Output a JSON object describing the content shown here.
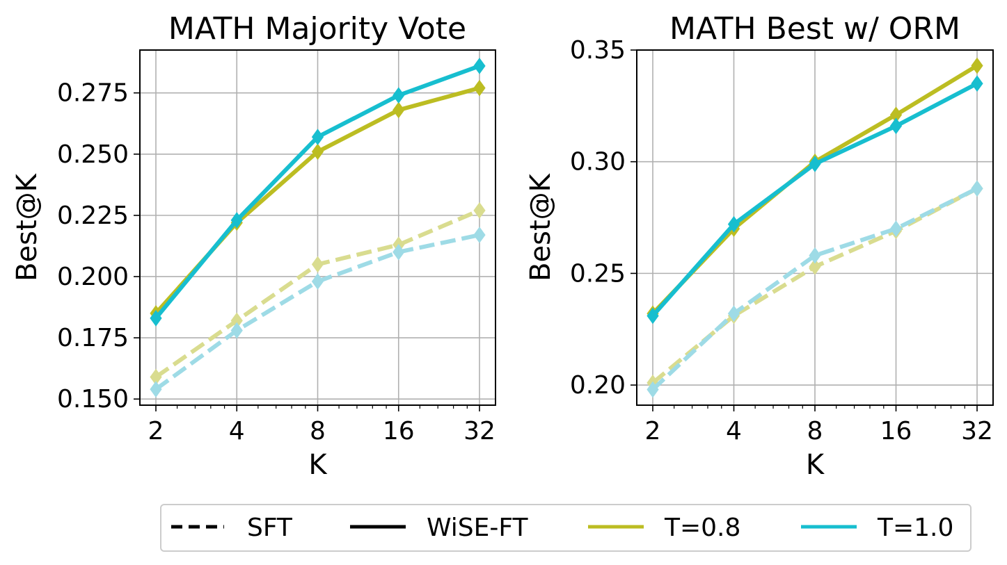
{
  "chart_data": [
    {
      "type": "line",
      "title": "MATH Majority Vote",
      "xlabel": "K",
      "ylabel": "Best@K",
      "x_scale": "log2",
      "x": [
        2,
        4,
        8,
        16,
        32
      ],
      "x_tick_labels": [
        "2",
        "4",
        "8",
        "16",
        "32"
      ],
      "ylim": [
        0.1475,
        0.2925
      ],
      "y_ticks": [
        0.15,
        0.175,
        0.2,
        0.225,
        0.25,
        0.275
      ],
      "y_tick_labels": [
        "0.150",
        "0.175",
        "0.200",
        "0.225",
        "0.250",
        "0.275"
      ],
      "grid": true,
      "series": [
        {
          "name": "SFT T=0.8",
          "method": "SFT",
          "temperature": "T=0.8",
          "style": "dashed",
          "color": "#d9dc8f",
          "values": [
            0.159,
            0.182,
            0.205,
            0.213,
            0.227
          ]
        },
        {
          "name": "SFT T=1.0",
          "method": "SFT",
          "temperature": "T=1.0",
          "style": "dashed",
          "color": "#9edbe6",
          "values": [
            0.154,
            0.178,
            0.198,
            0.21,
            0.217
          ]
        },
        {
          "name": "WiSE-FT T=0.8",
          "method": "WiSE-FT",
          "temperature": "T=0.8",
          "style": "solid",
          "color": "#bcbd22",
          "values": [
            0.185,
            0.222,
            0.251,
            0.268,
            0.277
          ]
        },
        {
          "name": "WiSE-FT T=1.0",
          "method": "WiSE-FT",
          "temperature": "T=1.0",
          "style": "solid",
          "color": "#17becf",
          "values": [
            0.183,
            0.223,
            0.257,
            0.274,
            0.286
          ]
        }
      ]
    },
    {
      "type": "line",
      "title": "MATH Best w/ ORM",
      "xlabel": "K",
      "ylabel": "Best@K",
      "x_scale": "log2",
      "x": [
        2,
        4,
        8,
        16,
        32
      ],
      "x_tick_labels": [
        "2",
        "4",
        "8",
        "16",
        "32"
      ],
      "ylim": [
        0.191,
        0.35
      ],
      "y_ticks": [
        0.2,
        0.25,
        0.3,
        0.35
      ],
      "y_tick_labels": [
        "0.20",
        "0.25",
        "0.30",
        "0.35"
      ],
      "grid": true,
      "series": [
        {
          "name": "SFT T=0.8",
          "method": "SFT",
          "temperature": "T=0.8",
          "style": "dashed",
          "color": "#d9dc8f",
          "values": [
            0.201,
            0.231,
            0.253,
            0.269,
            0.288
          ]
        },
        {
          "name": "SFT T=1.0",
          "method": "SFT",
          "temperature": "T=1.0",
          "style": "dashed",
          "color": "#9edbe6",
          "values": [
            0.198,
            0.232,
            0.258,
            0.27,
            0.288
          ]
        },
        {
          "name": "WiSE-FT T=0.8",
          "method": "WiSE-FT",
          "temperature": "T=0.8",
          "style": "solid",
          "color": "#bcbd22",
          "values": [
            0.232,
            0.27,
            0.3,
            0.321,
            0.343
          ]
        },
        {
          "name": "WiSE-FT T=1.0",
          "method": "WiSE-FT",
          "temperature": "T=1.0",
          "style": "solid",
          "color": "#17becf",
          "values": [
            0.231,
            0.272,
            0.299,
            0.316,
            0.335
          ]
        }
      ]
    }
  ],
  "legend": {
    "placement": "bottom-center",
    "entries": [
      {
        "label": "SFT",
        "style": "dashed",
        "color": "#000000"
      },
      {
        "label": "WiSE-FT",
        "style": "solid",
        "color": "#000000"
      },
      {
        "label": "T=0.8",
        "style": "solid",
        "color": "#bcbd22"
      },
      {
        "label": "T=1.0",
        "style": "solid",
        "color": "#17becf"
      }
    ]
  }
}
